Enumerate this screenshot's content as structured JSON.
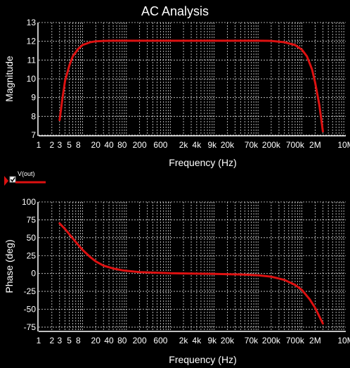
{
  "title": "AC Analysis",
  "colors": {
    "background": "#000000",
    "grid": "#ffffff",
    "trace": "#dd1111",
    "text": "#ffffff"
  },
  "legend": {
    "label": "V(out)",
    "checked": true,
    "icon": "legend-marker-triangle"
  },
  "chart_data": [
    {
      "type": "line",
      "xscale": "log",
      "xlabel": "Frequency (Hz)",
      "ylabel": "Magnitude",
      "ylim": [
        7,
        13
      ],
      "xlim": [
        1,
        10000000
      ],
      "yticks": [
        7,
        8,
        9,
        10,
        11,
        12,
        13
      ],
      "xtick_labels": [
        {
          "v": 1,
          "t": "1"
        },
        {
          "v": 2,
          "t": "2"
        },
        {
          "v": 3,
          "t": "3"
        },
        {
          "v": 5,
          "t": "5"
        },
        {
          "v": 8,
          "t": "8"
        },
        {
          "v": 20,
          "t": "20"
        },
        {
          "v": 40,
          "t": "40"
        },
        {
          "v": 80,
          "t": "80"
        },
        {
          "v": 200,
          "t": "200"
        },
        {
          "v": 600,
          "t": "600"
        },
        {
          "v": 2000,
          "t": "2k"
        },
        {
          "v": 4000,
          "t": "4k"
        },
        {
          "v": 9000,
          "t": "9k"
        },
        {
          "v": 20000,
          "t": "20k"
        },
        {
          "v": 70000,
          "t": "70k"
        },
        {
          "v": 200000,
          "t": "200k"
        },
        {
          "v": 700000,
          "t": "700k"
        },
        {
          "v": 2000000,
          "t": "2M"
        },
        {
          "v": 10000000,
          "t": "10M"
        }
      ],
      "grid": true,
      "series": [
        {
          "name": "V(out)",
          "x": [
            3,
            3.5,
            4,
            5,
            6,
            8,
            10,
            15,
            20,
            30,
            50,
            100,
            1000,
            10000,
            100000,
            200000,
            400000,
            700000,
            1000000,
            1300000,
            1700000,
            2000000,
            2500000,
            3000000
          ],
          "y": [
            7.8,
            9.0,
            9.9,
            10.7,
            11.2,
            11.6,
            11.8,
            11.95,
            12.0,
            12.02,
            12.03,
            12.03,
            12.03,
            12.03,
            12.03,
            12.02,
            11.95,
            11.8,
            11.55,
            11.2,
            10.5,
            9.8,
            8.6,
            7.2
          ]
        }
      ]
    },
    {
      "type": "line",
      "xscale": "log",
      "xlabel": "Frequency (Hz)",
      "ylabel": "Phase (deg)",
      "ylim": [
        -80,
        100
      ],
      "xlim": [
        1,
        10000000
      ],
      "yticks": [
        -75,
        -50,
        -25,
        0,
        25,
        50,
        75,
        100
      ],
      "xtick_labels": [
        {
          "v": 1,
          "t": "1"
        },
        {
          "v": 2,
          "t": "2"
        },
        {
          "v": 3,
          "t": "3"
        },
        {
          "v": 5,
          "t": "5"
        },
        {
          "v": 8,
          "t": "8"
        },
        {
          "v": 20,
          "t": "20"
        },
        {
          "v": 40,
          "t": "40"
        },
        {
          "v": 80,
          "t": "80"
        },
        {
          "v": 200,
          "t": "200"
        },
        {
          "v": 600,
          "t": "600"
        },
        {
          "v": 2000,
          "t": "2k"
        },
        {
          "v": 4000,
          "t": "4k"
        },
        {
          "v": 9000,
          "t": "9k"
        },
        {
          "v": 20000,
          "t": "20k"
        },
        {
          "v": 70000,
          "t": "70k"
        },
        {
          "v": 200000,
          "t": "200k"
        },
        {
          "v": 700000,
          "t": "700k"
        },
        {
          "v": 2000000,
          "t": "2M"
        },
        {
          "v": 10000000,
          "t": "10M"
        }
      ],
      "grid": true,
      "series": [
        {
          "name": "V(out)",
          "x": [
            3,
            4,
            5,
            7,
            10,
            15,
            20,
            30,
            50,
            80,
            100,
            200,
            1000,
            10000,
            50000,
            100000,
            200000,
            400000,
            700000,
            1000000,
            1500000,
            2000000,
            2500000,
            3000000
          ],
          "y": [
            70,
            62,
            55,
            44,
            33,
            23,
            17,
            11,
            7,
            4.5,
            3.7,
            1.9,
            0.4,
            -0.5,
            -1.5,
            -2.5,
            -4.5,
            -9,
            -16,
            -23,
            -36,
            -48,
            -60,
            -70
          ]
        }
      ]
    }
  ]
}
